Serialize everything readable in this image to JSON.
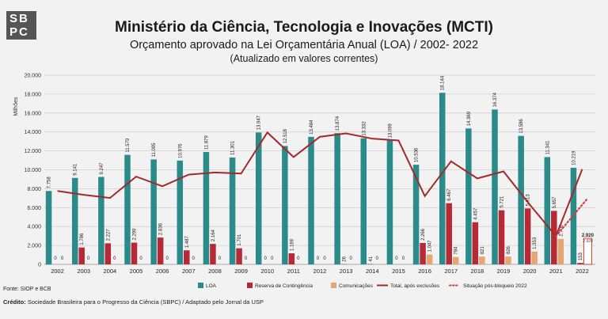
{
  "logo": {
    "line1": "SBPC",
    "line1a": "SB",
    "line1b": "PC"
  },
  "header": {
    "title": "Ministério da Ciência, Tecnologia e Inovações (MCTI)",
    "subtitle": "Orçamento aprovado na Lei Orçamentária Anual (LOA) / 2002- 2022",
    "note": "(Atualizado em valores correntes)"
  },
  "footer": {
    "source": "Fonte: SIOP e BCB",
    "credit_label": "Crédito:",
    "credit_text": "Sociedade Brasileira para o Progresso da Ciência (SBPC) / Adaptado pelo Jornal da USP"
  },
  "colors": {
    "loa": "#2b8a8a",
    "reserva": "#b52a36",
    "comunicacoes": "#e4a773",
    "total": "#a32a2a",
    "situacao": "#d93a3a"
  },
  "chart_data": {
    "type": "bar",
    "ylabel": "Milhões",
    "ylim": [
      0,
      20000
    ],
    "yticks": [
      "0",
      "2.000",
      "4.000",
      "6.000",
      "8.000",
      "10.000",
      "12.000",
      "14.000",
      "16.000",
      "18.000",
      "20.000"
    ],
    "categories": [
      "2002",
      "2003",
      "2004",
      "2005",
      "2006",
      "2007",
      "2008",
      "2009",
      "2010",
      "2011",
      "2012",
      "2013",
      "2014",
      "2015",
      "2016",
      "2017",
      "2018",
      "2019",
      "2020",
      "2021",
      "2022"
    ],
    "grid": true,
    "legend": "bottom",
    "series": [
      {
        "name": "LOA",
        "kind": "bar",
        "values": [
          7758,
          9141,
          9247,
          11579,
          11095,
          10976,
          11879,
          11301,
          13947,
          12518,
          13484,
          13874,
          13332,
          13099,
          10536,
          18144,
          14369,
          16374,
          13586,
          11341,
          10219
        ],
        "labels": [
          "7.758",
          "9.141",
          "9.247",
          "11.579",
          "11.095",
          "10.976",
          "11.879",
          "11.301",
          "13.947",
          "12.518",
          "13.484",
          "13.874",
          "13.332",
          "13.099",
          "10.536",
          "18.144",
          "14.369",
          "16.374",
          "13.586",
          "11.341",
          "10.219"
        ]
      },
      {
        "name": "Reserva de Contingência",
        "kind": "bar",
        "values": [
          0,
          1786,
          2227,
          2299,
          2836,
          1487,
          2164,
          1701,
          0,
          1169,
          0,
          26,
          41,
          0,
          2266,
          6467,
          4457,
          5721,
          5913,
          5657,
          153
        ],
        "labels": [
          "0",
          "1.786",
          "2.227",
          "2.299",
          "2.836",
          "1.487",
          "2.164",
          "1.701",
          "0",
          "1.169",
          "0",
          "26",
          "41",
          "0",
          "2.266",
          "6.467",
          "4.457",
          "5.721",
          "5.913",
          "5.657",
          "153"
        ]
      },
      {
        "name": "Comunicações",
        "kind": "bar",
        "values": [
          0,
          0,
          0,
          0,
          0,
          0,
          0,
          0,
          0,
          0,
          0,
          0,
          0,
          0,
          1047,
          784,
          821,
          826,
          1353,
          2700,
          0
        ],
        "labels": [
          "0",
          "0",
          "0",
          "0",
          "0",
          "0",
          "0",
          "0",
          "0",
          "0",
          "0",
          "0",
          "0",
          "0",
          "1.047",
          "784",
          "821",
          "826",
          "1.353",
          "2.700",
          ""
        ]
      },
      {
        "name": "Total, após exclusões",
        "kind": "line",
        "values": [
          7758,
          7355,
          7020,
          9280,
          8259,
          9489,
          9715,
          9600,
          13947,
          11349,
          13484,
          13848,
          13291,
          13099,
          7223,
          10893,
          9091,
          9827,
          6320,
          2984,
          10066
        ]
      },
      {
        "name": "Situação pós-bloqueio 2022",
        "kind": "dotted",
        "x": [
          "2021",
          "2022"
        ],
        "values": [
          2984,
          6900
        ]
      }
    ],
    "annotations": [
      "2.920",
      "2.920"
    ]
  }
}
